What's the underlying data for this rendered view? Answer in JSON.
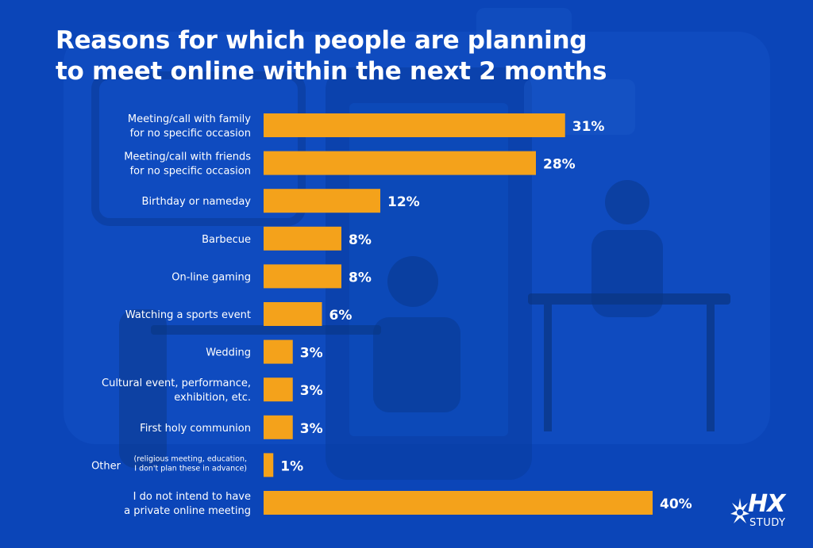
{
  "title_lines": [
    "Reasons for which people are planning",
    "to meet online within the next 2 months"
  ],
  "colors": {
    "background": "#0b45b8",
    "bar": "#f4a21b",
    "text": "#ffffff"
  },
  "logo": {
    "mark": "HX",
    "sub": "STUDY",
    "icon": "starburst-icon"
  },
  "chart_data": {
    "type": "bar",
    "orientation": "horizontal",
    "title": "Reasons for which people are planning to meet online within the next 2 months",
    "unit": "%",
    "categories": [
      {
        "lines": [
          "Meeting/call with family",
          "for no specific occasion"
        ]
      },
      {
        "lines": [
          "Meeting/call with friends",
          "for no specific occasion"
        ]
      },
      {
        "lines": [
          "Birthday or nameday"
        ]
      },
      {
        "lines": [
          "Barbecue"
        ]
      },
      {
        "lines": [
          "On-line gaming"
        ]
      },
      {
        "lines": [
          "Watching a sports event"
        ]
      },
      {
        "lines": [
          "Wedding"
        ]
      },
      {
        "lines": [
          "Cultural event, performance,",
          "exhibition, etc."
        ]
      },
      {
        "lines": [
          "First holy communion"
        ]
      },
      {
        "lines": [
          "Other"
        ],
        "note": [
          "(religious meeting, education,",
          "I don't plan these in advance)"
        ]
      },
      {
        "lines": [
          "I do not intend to have",
          "a private online meeting"
        ]
      }
    ],
    "values": [
      31,
      28,
      12,
      8,
      8,
      6,
      3,
      3,
      3,
      1,
      40
    ],
    "value_labels": [
      "31%",
      "28%",
      "12%",
      "8%",
      "8%",
      "6%",
      "3%",
      "3%",
      "3%",
      "1%",
      "40%"
    ],
    "xlim": [
      0,
      40
    ],
    "grid": false,
    "legend": "none"
  }
}
